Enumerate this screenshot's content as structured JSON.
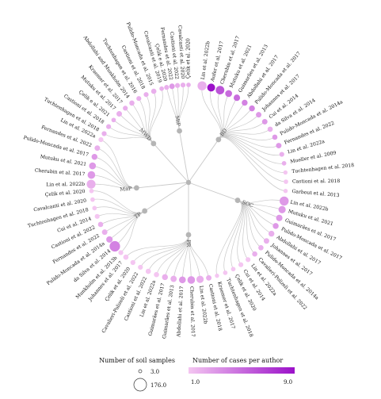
{
  "chart_data": {
    "type": "radial-dendrogram",
    "root": "",
    "branches": [
      {
        "name": "BD",
        "leaves": [
          {
            "label": "Lin et al. 2022b",
            "samples": 60,
            "cases": 2
          },
          {
            "label": "Aufer et al. 2017",
            "samples": 40,
            "cases": 9
          },
          {
            "label": "Cherubin et al. 2017",
            "samples": 50,
            "cases": 6
          },
          {
            "label": "Mutuku et al. 2021",
            "samples": 25,
            "cases": 5
          },
          {
            "label": "Guimarães et al. 2013",
            "samples": 20,
            "cases": 5
          },
          {
            "label": "Abdollahi et al. 2017",
            "samples": 15,
            "cases": 4
          },
          {
            "label": "Pulido-Moncada et al. 2017",
            "samples": 15,
            "cases": 4
          },
          {
            "label": "Johannes et al. 2017",
            "samples": 12,
            "cases": 3
          },
          {
            "label": "Cui et al. 2014",
            "samples": 12,
            "cases": 3
          },
          {
            "label": "da Silva et al. 2014",
            "samples": 10,
            "cases": 2
          },
          {
            "label": "Pulido-Moncada et al. 2014a",
            "samples": 10,
            "cases": 3
          },
          {
            "label": "Fernandes et al. 2022",
            "samples": 12,
            "cases": 3
          },
          {
            "label": "Lin et al. 2022a",
            "samples": 8,
            "cases": 2
          },
          {
            "label": "Mueller et al. 2009",
            "samples": 6,
            "cases": 2
          },
          {
            "label": "Tuchtenhagen et al. 2018",
            "samples": 5,
            "cases": 1
          },
          {
            "label": "Castioni et al. 2018",
            "samples": 6,
            "cases": 1
          },
          {
            "label": "Garbout et al. 2013",
            "samples": 5,
            "cases": 1
          }
        ]
      },
      {
        "name": "SOC",
        "leaves": [
          {
            "label": "Lin et al. 2022b",
            "samples": 60,
            "cases": 3
          },
          {
            "label": "Mutuku et al. 2021",
            "samples": 30,
            "cases": 3
          },
          {
            "label": "Guimarães et al. 2017",
            "samples": 20,
            "cases": 3
          },
          {
            "label": "Pulido-Moncada et al. 2017",
            "samples": 15,
            "cases": 3
          },
          {
            "label": "Abdollahi et al. 2017",
            "samples": 15,
            "cases": 2
          },
          {
            "label": "Johannes et al. 2017",
            "samples": 12,
            "cases": 2
          },
          {
            "label": "Pulido-Moncada et al. 2014a",
            "samples": 10,
            "cases": 2
          },
          {
            "label": "Cavalieri-Polizeli et al. 2022",
            "samples": 10,
            "cases": 2
          },
          {
            "label": "Lin et al. 2022a",
            "samples": 8,
            "cases": 1
          },
          {
            "label": "Cui et al. 2014",
            "samples": 8,
            "cases": 1
          },
          {
            "label": "Çelik et al. 2020",
            "samples": 6,
            "cases": 1
          },
          {
            "label": "Tuchtenhagen et al. 2018",
            "samples": 6,
            "cases": 1
          },
          {
            "label": "Kraemer et al. 2017",
            "samples": 5,
            "cases": 1
          }
        ]
      },
      {
        "name": "PR",
        "leaves": [
          {
            "label": "Castioni et al. 2018",
            "samples": 12,
            "cases": 2
          },
          {
            "label": "Lin et al. 2022b",
            "samples": 30,
            "cases": 2
          },
          {
            "label": "Cherubin et al. 2017",
            "samples": 35,
            "cases": 3
          },
          {
            "label": "Abdollahi et al. 2017",
            "samples": 25,
            "cases": 3
          },
          {
            "label": "Guimarães et al. 2013",
            "samples": 18,
            "cases": 2
          },
          {
            "label": "Guimarães et al. 2017",
            "samples": 15,
            "cases": 2
          },
          {
            "label": "Lin et al. 2022a",
            "samples": 10,
            "cases": 1
          },
          {
            "label": "Castioni et al. 2022",
            "samples": 10,
            "cases": 1
          },
          {
            "label": "Cavalieri-Polizeli et al. 2022",
            "samples": 8,
            "cases": 1
          },
          {
            "label": "Çelik et al. 2020",
            "samples": 8,
            "cases": 1
          },
          {
            "label": "Johannes et al. 2017",
            "samples": 10,
            "cases": 1
          }
        ]
      },
      {
        "name": "TP",
        "leaves": [
          {
            "label": "Munkholm et al. 2013b",
            "samples": 8,
            "cases": 1
          },
          {
            "label": "da Silva et al. 2014",
            "samples": 90,
            "cases": 4
          },
          {
            "label": "Pulido-Moncada et al. 2014a",
            "samples": 20,
            "cases": 3
          },
          {
            "label": "Fernandes et al. 2022",
            "samples": 12,
            "cases": 2
          },
          {
            "label": "Castioni et al. 2022",
            "samples": 10,
            "cases": 2
          },
          {
            "label": "Cui et al. 2014",
            "samples": 8,
            "cases": 1
          },
          {
            "label": "Tuchtenhagen et al. 2018",
            "samples": 6,
            "cases": 1
          },
          {
            "label": "Cavalcanti et al. 2020",
            "samples": 6,
            "cases": 1
          },
          {
            "label": "Çelik et al. 2020",
            "samples": 6,
            "cases": 1
          }
        ]
      },
      {
        "name": "MaP",
        "leaves": [
          {
            "label": "Lin et al. 2022b",
            "samples": 55,
            "cases": 2
          },
          {
            "label": "Cherubin et al. 2017",
            "samples": 35,
            "cases": 3
          },
          {
            "label": "Mutuku et al. 2021",
            "samples": 25,
            "cases": 3
          },
          {
            "label": "Pulido-Moncada et al. 2017",
            "samples": 15,
            "cases": 3
          },
          {
            "label": "Fernandes et al. 2022",
            "samples": 12,
            "cases": 2
          },
          {
            "label": "Lin et al. 2022a",
            "samples": 8,
            "cases": 1
          }
        ]
      },
      {
        "name": "MWD",
        "leaves": [
          {
            "label": "Tuchtenhagen et al. 2018",
            "samples": 8,
            "cases": 2
          },
          {
            "label": "Castioni et al. 2018",
            "samples": 8,
            "cases": 2
          },
          {
            "label": "Çelik e al. 2021",
            "samples": 6,
            "cases": 2
          },
          {
            "label": "Mutuku et al. 2017",
            "samples": 12,
            "cases": 2
          },
          {
            "label": "Kraemer et al. 2017",
            "samples": 8,
            "cases": 2
          },
          {
            "label": "Abdollahi and Munkholm 2014",
            "samples": 10,
            "cases": 2
          },
          {
            "label": "Tuchtenhagen et al. 2016",
            "samples": 8,
            "cases": 2
          },
          {
            "label": "Castioni et al. 2018",
            "samples": 8,
            "cases": 2
          },
          {
            "label": "Pulido-Moncada et al. 2015",
            "samples": 10,
            "cases": 2
          },
          {
            "label": "Cavalcanti et al. 2019",
            "samples": 6,
            "cases": 2
          }
        ]
      },
      {
        "name": "MiP",
        "leaves": [
          {
            "label": "Çelik e al. 2020",
            "samples": 8,
            "cases": 2
          },
          {
            "label": "Fernandes et al. 2022",
            "samples": 12,
            "cases": 3
          },
          {
            "label": "Castioni et al. 2022",
            "samples": 8,
            "cases": 2
          },
          {
            "label": "Cavalcanti et al. 2020",
            "samples": 8,
            "cases": 2
          },
          {
            "label": "Çelik et al. 2020",
            "samples": 6,
            "cases": 2
          }
        ]
      }
    ],
    "legend_size": {
      "title": "Number of soil samples",
      "min_label": "3.0",
      "max_label": "176.0",
      "min": 3,
      "max": 176
    },
    "legend_color": {
      "title": "Number of cases per author",
      "min_label": "1.0",
      "max_label": "9.0",
      "min": 1,
      "max": 9,
      "color_low": "#f4c6f1",
      "color_high": "#9b11c9"
    },
    "colors": {
      "branch_node": "#b5b5b5",
      "link": "#c8c8c8"
    }
  }
}
